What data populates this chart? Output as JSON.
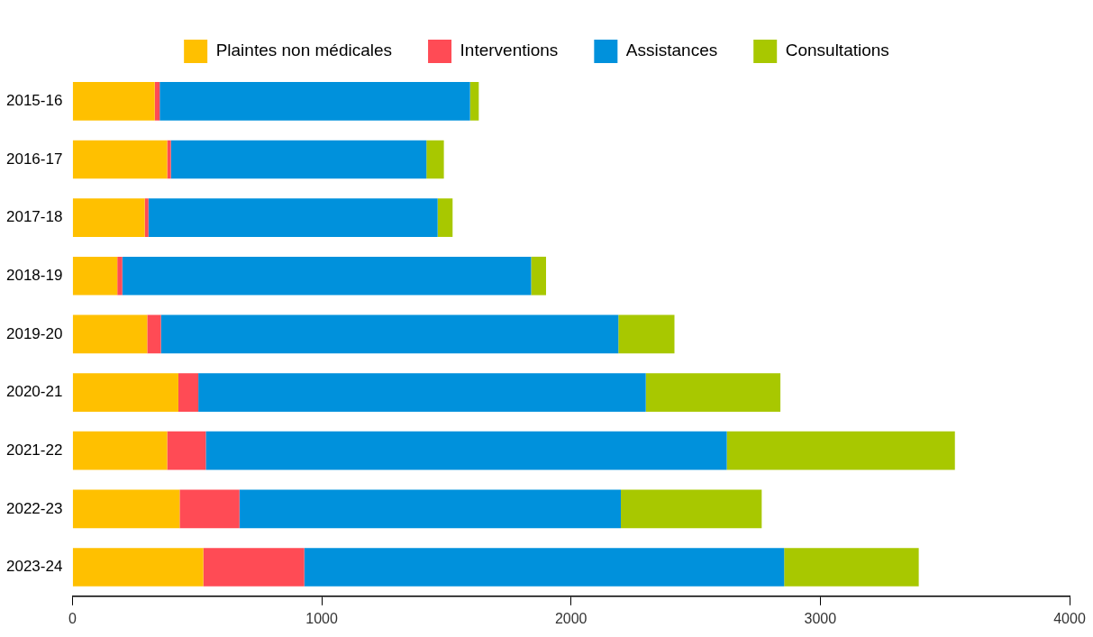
{
  "chart_data": {
    "type": "bar",
    "orientation": "horizontal",
    "stacked": true,
    "legend": "top",
    "grid": false,
    "categories": [
      "2015-16",
      "2016-17",
      "2017-18",
      "2018-19",
      "2019-20",
      "2020-21",
      "2021-22",
      "2022-23",
      "2023-24"
    ],
    "series": [
      {
        "name": "Plaintes non médicales",
        "color": "#ffc000",
        "values": [
          330,
          380,
          290,
          180,
          300,
          425,
          380,
          430,
          525
        ]
      },
      {
        "name": "Interventions",
        "color": "#ff4b55",
        "values": [
          20,
          15,
          15,
          20,
          55,
          80,
          155,
          240,
          405
        ]
      },
      {
        "name": "Assistances",
        "color": "#0091dc",
        "values": [
          1245,
          1025,
          1160,
          1640,
          1835,
          1795,
          2090,
          1530,
          1925
        ]
      },
      {
        "name": "Consultations",
        "color": "#a8c800",
        "values": [
          35,
          70,
          60,
          60,
          225,
          540,
          915,
          565,
          540
        ]
      }
    ],
    "xlim": [
      0,
      4000
    ],
    "xticks": [
      0,
      1000,
      2000,
      3000,
      4000
    ]
  }
}
